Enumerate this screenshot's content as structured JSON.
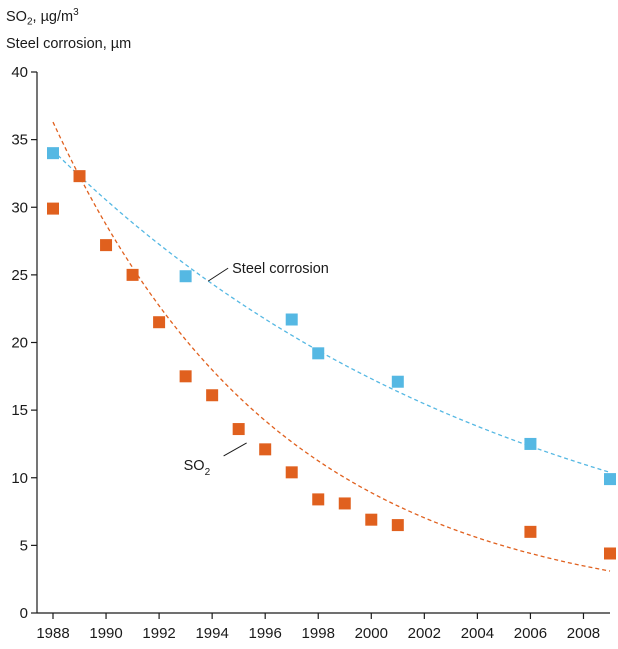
{
  "chart_data": {
    "type": "scatter",
    "ylabel_line1": {
      "main": "SO",
      "sub": "2",
      "rest": ", µg/m",
      "sup": "3"
    },
    "ylabel_line2": "Steel corrosion, µm",
    "xlim": [
      1988,
      2009
    ],
    "ylim": [
      0,
      40
    ],
    "xticks": [
      "1988",
      "1990",
      "1992",
      "1994",
      "1996",
      "1998",
      "2000",
      "2002",
      "2004",
      "2006",
      "2008"
    ],
    "yticks": [
      "0",
      "5",
      "10",
      "15",
      "20",
      "25",
      "30",
      "35",
      "40"
    ],
    "grid": false,
    "series": [
      {
        "key": "steel",
        "name": "Steel corrosion",
        "color": "#55b8e3",
        "x": [
          1988,
          1993,
          1997,
          1998,
          2001,
          2006,
          2009
        ],
        "y": [
          34.0,
          24.9,
          21.7,
          19.2,
          17.1,
          12.5,
          9.9
        ],
        "trend": {
          "kind": "exponential",
          "x": [
            1988,
            2009
          ],
          "y": [
            34.2,
            10.4
          ]
        },
        "annotation": {
          "text": "Steel corrosion",
          "x": 1994,
          "y": 25.5
        }
      },
      {
        "key": "so2",
        "name_main": "SO",
        "name_sub": "2",
        "color": "#e0601e",
        "x": [
          1988,
          1989,
          1990,
          1991,
          1992,
          1993,
          1994,
          1995,
          1996,
          1997,
          1998,
          1999,
          2000,
          2001,
          2006,
          2009
        ],
        "y": [
          29.9,
          32.3,
          27.2,
          25.0,
          21.5,
          17.5,
          16.1,
          13.6,
          12.1,
          10.4,
          8.4,
          8.1,
          6.9,
          6.5,
          6.0,
          4.4
        ],
        "trend": {
          "kind": "exponential",
          "x": [
            1988,
            2009
          ],
          "y": [
            36.3,
            3.1
          ]
        },
        "annotation": {
          "text_main": "SO",
          "text_sub": "2",
          "x": 1995.3,
          "y": 12.5
        }
      }
    ]
  }
}
